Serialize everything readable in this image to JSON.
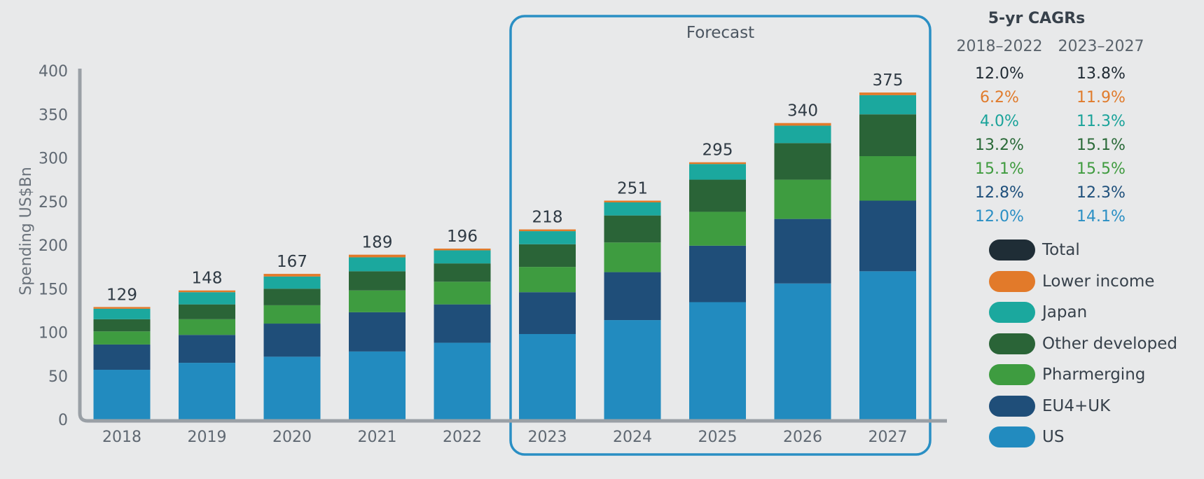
{
  "forecast_label": "Forecast",
  "cagr_table": {
    "title": "5-yr CAGRs",
    "periods": [
      "2018–2022",
      "2023–2027"
    ],
    "rows": [
      {
        "series": "Total",
        "color": "#1f2a33",
        "values": [
          "12.0%",
          "13.8%"
        ]
      },
      {
        "series": "Lower income",
        "color": "#e07b2c",
        "values": [
          "6.2%",
          "11.9%"
        ]
      },
      {
        "series": "Japan",
        "color": "#1aa39a",
        "values": [
          "4.0%",
          "11.3%"
        ]
      },
      {
        "series": "Other developed",
        "color": "#2a6a38",
        "values": [
          "13.2%",
          "15.1%"
        ]
      },
      {
        "series": "Pharmerging",
        "color": "#3f9b3f",
        "values": [
          "15.1%",
          "15.5%"
        ]
      },
      {
        "series": "EU4+UK",
        "color": "#1e4f7b",
        "values": [
          "12.8%",
          "12.3%"
        ]
      },
      {
        "series": "US",
        "color": "#2a8fc4",
        "values": [
          "12.0%",
          "14.1%"
        ]
      }
    ]
  },
  "legend": [
    {
      "label": "Total",
      "color": "#1f2d36"
    },
    {
      "label": "Lower income",
      "color": "#e27a2a"
    },
    {
      "label": "Japan",
      "color": "#1ba89e"
    },
    {
      "label": "Other developed",
      "color": "#2a6437"
    },
    {
      "label": "Pharmerging",
      "color": "#3e9c40"
    },
    {
      "label": "EU4+UK",
      "color": "#1f4e79"
    },
    {
      "label": "US",
      "color": "#228bbf"
    }
  ],
  "chart_data": {
    "type": "bar",
    "stacked": true,
    "ylabel": "Spending US$Bn",
    "xlabel": "",
    "ylim": [
      0,
      400
    ],
    "yticks": [
      0,
      50,
      100,
      150,
      200,
      250,
      300,
      350,
      400
    ],
    "categories": [
      "2018",
      "2019",
      "2020",
      "2021",
      "2022",
      "2023",
      "2024",
      "2025",
      "2026",
      "2027"
    ],
    "forecast_categories": [
      "2023",
      "2024",
      "2025",
      "2026",
      "2027"
    ],
    "totals": [
      129,
      148,
      167,
      189,
      196,
      218,
      251,
      295,
      340,
      375
    ],
    "series": [
      {
        "name": "US",
        "color": "#228bbf",
        "values": [
          57,
          65,
          72,
          78,
          88,
          98,
          114,
          135,
          156,
          170
        ]
      },
      {
        "name": "EU4+UK",
        "color": "#1f4e79",
        "values": [
          29,
          32,
          38,
          45,
          44,
          48,
          55,
          65,
          74,
          81
        ]
      },
      {
        "name": "Pharmerging",
        "color": "#3e9c40",
        "values": [
          15,
          18,
          21,
          25,
          26,
          29,
          34,
          39,
          45,
          51
        ]
      },
      {
        "name": "Other developed",
        "color": "#2a6437",
        "values": [
          14,
          17,
          19,
          22,
          21,
          26,
          31,
          37,
          42,
          48
        ]
      },
      {
        "name": "Japan",
        "color": "#1ba89e",
        "values": [
          12,
          14,
          14,
          16,
          15,
          15,
          15,
          18,
          20,
          22
        ]
      },
      {
        "name": "Lower income",
        "color": "#e27a2a",
        "values": [
          2,
          2,
          3,
          3,
          2,
          2,
          2,
          2,
          3,
          3
        ]
      }
    ]
  }
}
